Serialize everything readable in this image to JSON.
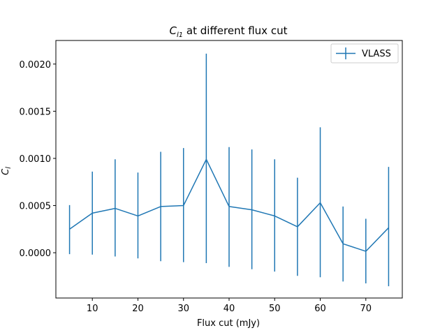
{
  "chart_data": {
    "type": "line",
    "title_main": "C",
    "title_sub": "l1",
    "title_rest": " at different flux cut",
    "xlabel": "Flux cut (mJy)",
    "ylabel_main": "C",
    "ylabel_sub": "l",
    "xlim": [
      2,
      78
    ],
    "ylim": [
      -0.00048,
      0.00225
    ],
    "x_ticks": [
      10,
      20,
      30,
      40,
      50,
      60,
      70
    ],
    "x_tick_labels": [
      "10",
      "20",
      "30",
      "40",
      "50",
      "60",
      "70"
    ],
    "y_ticks": [
      0.0,
      0.0005,
      0.001,
      0.0015,
      0.002
    ],
    "y_tick_labels": [
      "0.0000",
      "0.0005",
      "0.0010",
      "0.0015",
      "0.0020"
    ],
    "legend_position": "top-right",
    "grid": false,
    "series": [
      {
        "name": "VLASS",
        "color": "#1f77b4",
        "x": [
          5,
          10,
          15,
          20,
          25,
          30,
          35,
          40,
          45,
          50,
          55,
          60,
          65,
          70,
          75
        ],
        "y": [
          0.00025,
          0.00042,
          0.00047,
          0.00039,
          0.00049,
          0.0005,
          0.00099,
          0.00049,
          0.000455,
          0.00039,
          0.000275,
          0.00053,
          9.5e-05,
          1.5e-05,
          0.000265
        ],
        "yerr_low": [
          0.000265,
          0.00044,
          0.00051,
          0.00045,
          0.00058,
          0.0006,
          0.0011,
          0.00064,
          0.00063,
          0.00059,
          0.00052,
          0.00079,
          0.0004,
          0.00034,
          0.00062
        ],
        "yerr_high": [
          0.000255,
          0.00044,
          0.00052,
          0.00046,
          0.00058,
          0.00061,
          0.00112,
          0.00063,
          0.00064,
          0.0006,
          0.00052,
          0.0008,
          0.000395,
          0.000345,
          0.000645
        ]
      }
    ]
  }
}
